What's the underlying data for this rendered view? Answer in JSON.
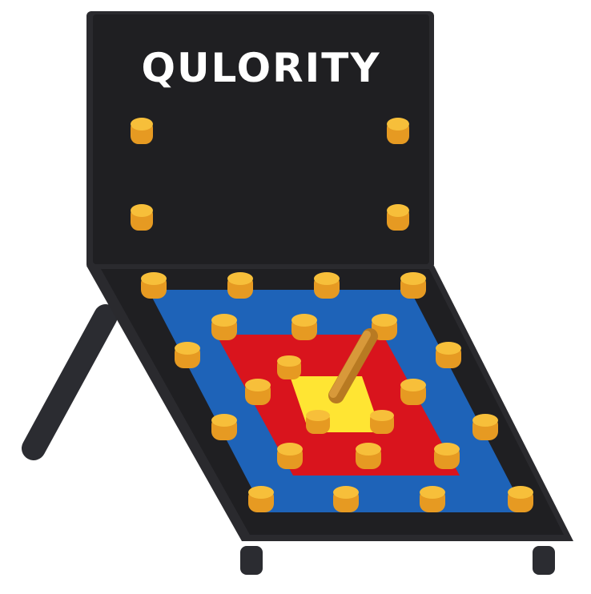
{
  "board": {
    "title": "QULORITY"
  },
  "colors": {
    "board": "#1f1f22",
    "board_edge": "#2a2a2e",
    "outer_ring": "#1e63b8",
    "middle_ring": "#d9141d",
    "center": "#ffe533",
    "peg": "#f0a22a",
    "peg_top": "#f7bf3a",
    "stick": "#c98a2e",
    "title": "#ffffff"
  },
  "icons": {
    "board": "quoits-board-icon",
    "ring_peg": "ring-peg-icon",
    "center_stick": "center-stick-icon"
  }
}
